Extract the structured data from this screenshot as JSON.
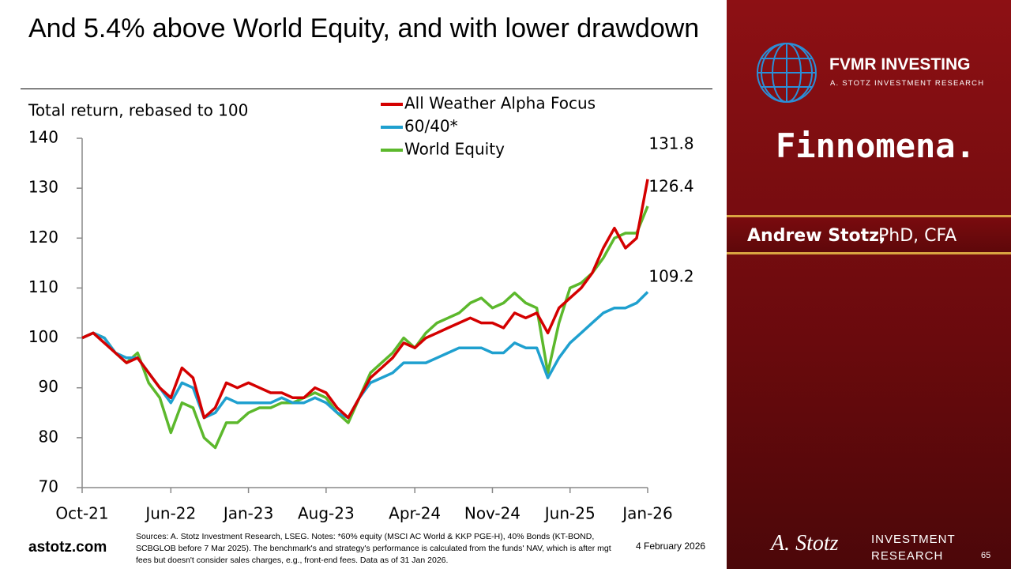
{
  "chart_data": {
    "type": "line",
    "title": "And 5.4% above World Equity, and with lower drawdown",
    "y_label": "Total return, rebased to 100",
    "categories": [
      "Oct-21",
      null,
      null,
      null,
      null,
      null,
      null,
      null,
      "Jun-22",
      null,
      null,
      null,
      null,
      null,
      null,
      "Jan-23",
      null,
      null,
      null,
      null,
      null,
      null,
      "Aug-23",
      null,
      null,
      null,
      null,
      null,
      null,
      null,
      "Apr-24",
      null,
      null,
      null,
      null,
      null,
      null,
      "Nov-24",
      null,
      null,
      null,
      null,
      null,
      null,
      "Jun-25",
      null,
      null,
      null,
      null,
      null,
      null,
      "Jan-26"
    ],
    "series": [
      {
        "name": "All Weather Alpha Focus",
        "color": "#d40000",
        "values": [
          100,
          101,
          99,
          97,
          95,
          96,
          93,
          90,
          88,
          94,
          92,
          84,
          86,
          91,
          90,
          91,
          90,
          89,
          89,
          88,
          88,
          90,
          89,
          86,
          84,
          88,
          92,
          94,
          96,
          99,
          98,
          100,
          101,
          102,
          103,
          104,
          103,
          103,
          102,
          105,
          104,
          105,
          101,
          106,
          108,
          110,
          113,
          118,
          122,
          118,
          120,
          131.8
        ]
      },
      {
        "name": "60/40*",
        "color": "#1fa0cf",
        "values": [
          100,
          101,
          100,
          97,
          96,
          96,
          93,
          90,
          87,
          91,
          90,
          84,
          85,
          88,
          87,
          87,
          87,
          87,
          88,
          87,
          87,
          88,
          87,
          85,
          84,
          88,
          91,
          92,
          93,
          95,
          95,
          95,
          96,
          97,
          98,
          98,
          98,
          97,
          97,
          99,
          98,
          98,
          92,
          96,
          99,
          101,
          103,
          105,
          106,
          106,
          107,
          109.2
        ]
      },
      {
        "name": "World Equity",
        "color": "#5cb82c",
        "values": [
          100,
          101,
          100,
          97,
          95,
          97,
          91,
          88,
          81,
          87,
          86,
          80,
          78,
          83,
          83,
          85,
          86,
          86,
          87,
          87,
          88,
          89,
          88,
          85,
          83,
          88,
          93,
          95,
          97,
          100,
          98,
          101,
          103,
          104,
          105,
          107,
          108,
          106,
          107,
          109,
          107,
          106,
          93,
          103,
          110,
          111,
          113,
          116,
          120,
          121,
          121,
          126.4
        ]
      }
    ],
    "ylim": [
      70,
      140
    ],
    "yticks": [
      70,
      80,
      90,
      100,
      110,
      120,
      130,
      140
    ],
    "grid": false
  },
  "footer": {
    "site": "astotz.com",
    "source": "Sources: A. Stotz Investment Research, LSEG. Notes: *60% equity (MSCI AC World & KKP PGE-H), 40% Bonds (KT-BOND, SCBGLOB before 7 Mar 2025). The benchmark's and strategy's performance is calculated from the funds' NAV, which is after mgt fees but doesn't consider sales charges, e.g., front-end fees. Data as of 31 Jan 2026.",
    "date": "4 February 2026",
    "page": "65"
  },
  "sidebar": {
    "brand": "FVMR INVESTING",
    "brand_sub": "A. STOTZ INVESTMENT RESEARCH",
    "partner": "Finnomena.",
    "presenter_name": "Andrew Stotz,",
    "presenter_title": "PhD, CFA",
    "logo_signature": "A. Stotz",
    "logo_line1": "INVESTMENT",
    "logo_line2": "RESEARCH"
  }
}
